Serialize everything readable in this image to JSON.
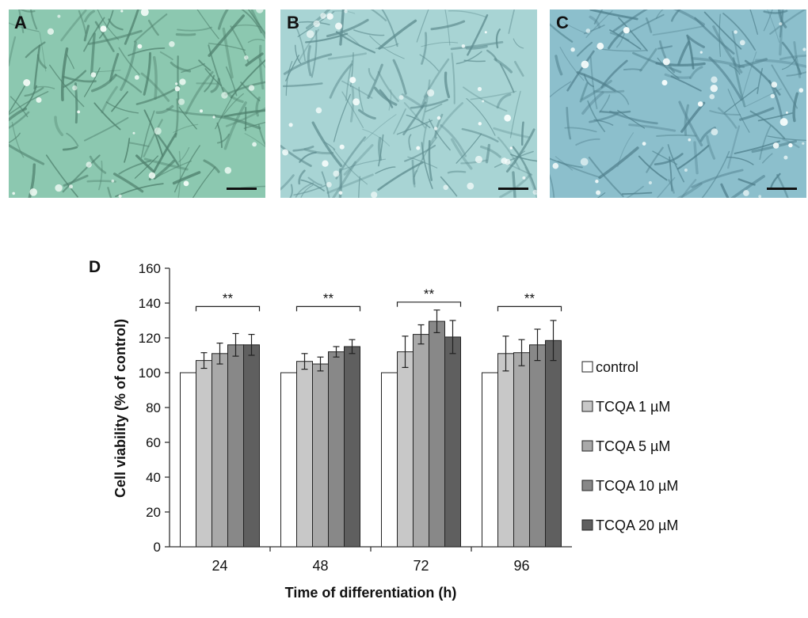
{
  "panels": {
    "a": {
      "label": "A",
      "bg": "#8cc8b0",
      "cell": "#4e7f6c",
      "bright": "#f2fbf6"
    },
    "b": {
      "label": "B",
      "bg": "#a8d4d4",
      "cell": "#5f8d90",
      "bright": "#f5fcfb"
    },
    "c": {
      "label": "C",
      "bg": "#8cbfcc",
      "cell": "#4f7f8c",
      "bright": "#f7fdfc"
    }
  },
  "chart_data": {
    "type": "bar",
    "panel_label": "D",
    "title": "",
    "xlabel": "Time of differentiation (h)",
    "ylabel": "Cell viability (% of control)",
    "ylim": [
      0,
      160
    ],
    "yticks": [
      "0",
      "20",
      "40",
      "60",
      "80",
      "100",
      "120",
      "140",
      "160"
    ],
    "categories": [
      "24",
      "48",
      "72",
      "96"
    ],
    "series": [
      {
        "name": "control",
        "color": "#ffffff",
        "values": [
          100,
          100,
          100,
          100
        ],
        "errors": [
          0,
          0,
          0,
          0
        ]
      },
      {
        "name": "TCQA 1 µM",
        "color": "#c8c8c8",
        "values": [
          107,
          106.5,
          112,
          111
        ],
        "errors": [
          4.5,
          4.5,
          9,
          10
        ]
      },
      {
        "name": "TCQA 5 µM",
        "color": "#a9a9a9",
        "values": [
          111,
          105,
          122,
          111.5
        ],
        "errors": [
          6,
          4,
          5.5,
          7.5
        ]
      },
      {
        "name": "TCQA 10 µM",
        "color": "#888888",
        "values": [
          116,
          112,
          129.5,
          116
        ],
        "errors": [
          6.5,
          3,
          6.5,
          9
        ]
      },
      {
        "name": "TCQA 20 µM",
        "color": "#5f5f5f",
        "values": [
          116,
          115,
          120.5,
          118.5
        ],
        "errors": [
          6,
          4,
          9.5,
          11.5
        ]
      }
    ],
    "significance": [
      {
        "category": "24",
        "label": "**"
      },
      {
        "category": "48",
        "label": "**"
      },
      {
        "category": "72",
        "label": "**"
      },
      {
        "category": "96",
        "label": "**"
      }
    ],
    "legend_position": "right"
  }
}
